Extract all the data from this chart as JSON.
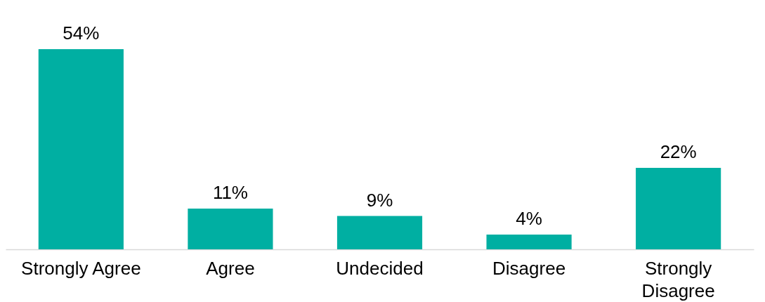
{
  "chart_data": {
    "type": "bar",
    "categories": [
      "Strongly Agree",
      "Agree",
      "Undecided",
      "Disagree",
      "Strongly Disagree"
    ],
    "values": [
      54,
      11,
      9,
      4,
      22
    ],
    "color": "#00afa2",
    "value_labels": [
      "54%",
      "11%",
      "9%",
      "4%",
      "22%"
    ],
    "grid": false
  }
}
